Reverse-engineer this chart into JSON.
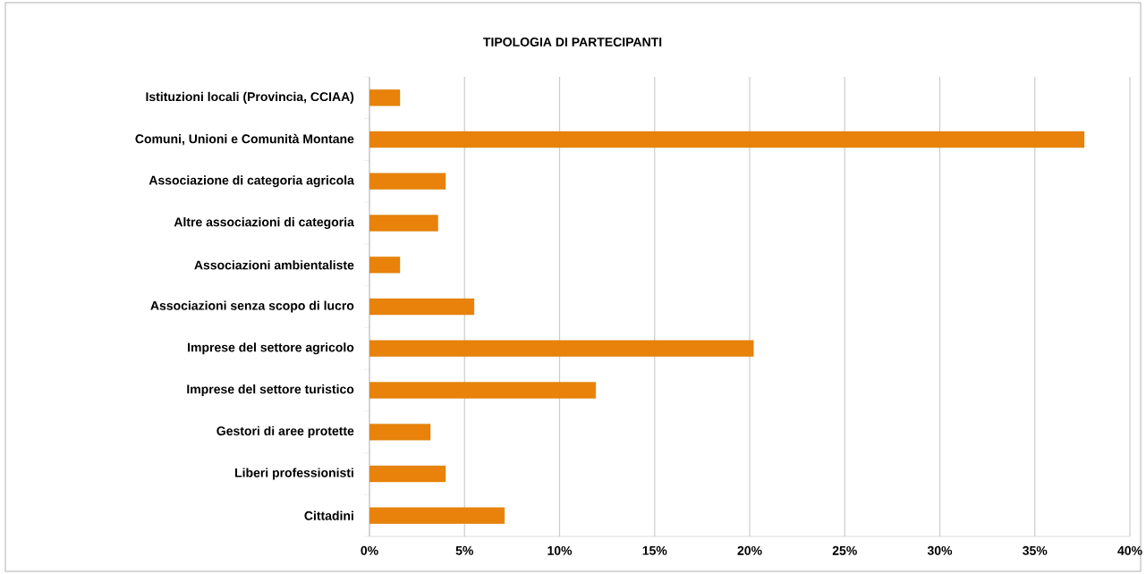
{
  "chart_data": {
    "type": "bar",
    "orientation": "horizontal",
    "title": "TIPOLOGIA DI PARTECIPANTI",
    "categories": [
      "Istituzioni locali (Provincia, CCIAA)",
      "Comuni, Unioni e Comunità Montane",
      "Associazione di categoria agricola",
      "Altre associazioni di categoria",
      "Associazioni ambientaliste",
      "Associazioni senza scopo di lucro",
      "Imprese del settore agricolo",
      "Imprese del settore turistico",
      "Gestori di aree protette",
      "Liberi professionisti",
      "Cittadini"
    ],
    "values": [
      1.6,
      37.6,
      4.0,
      3.6,
      1.6,
      5.5,
      20.2,
      11.9,
      3.2,
      4.0,
      7.1
    ],
    "color": "#e8820a",
    "xlim": [
      0,
      40
    ],
    "xticks": [
      {
        "value": 0,
        "label": "0%"
      },
      {
        "value": 5,
        "label": "5%"
      },
      {
        "value": 10,
        "label": "10%"
      },
      {
        "value": 15,
        "label": "15%"
      },
      {
        "value": 20,
        "label": "20%"
      },
      {
        "value": 25,
        "label": "25%"
      },
      {
        "value": 30,
        "label": "30%"
      },
      {
        "value": 35,
        "label": "35%"
      },
      {
        "value": 40,
        "label": "40%"
      }
    ],
    "grid": "x"
  }
}
